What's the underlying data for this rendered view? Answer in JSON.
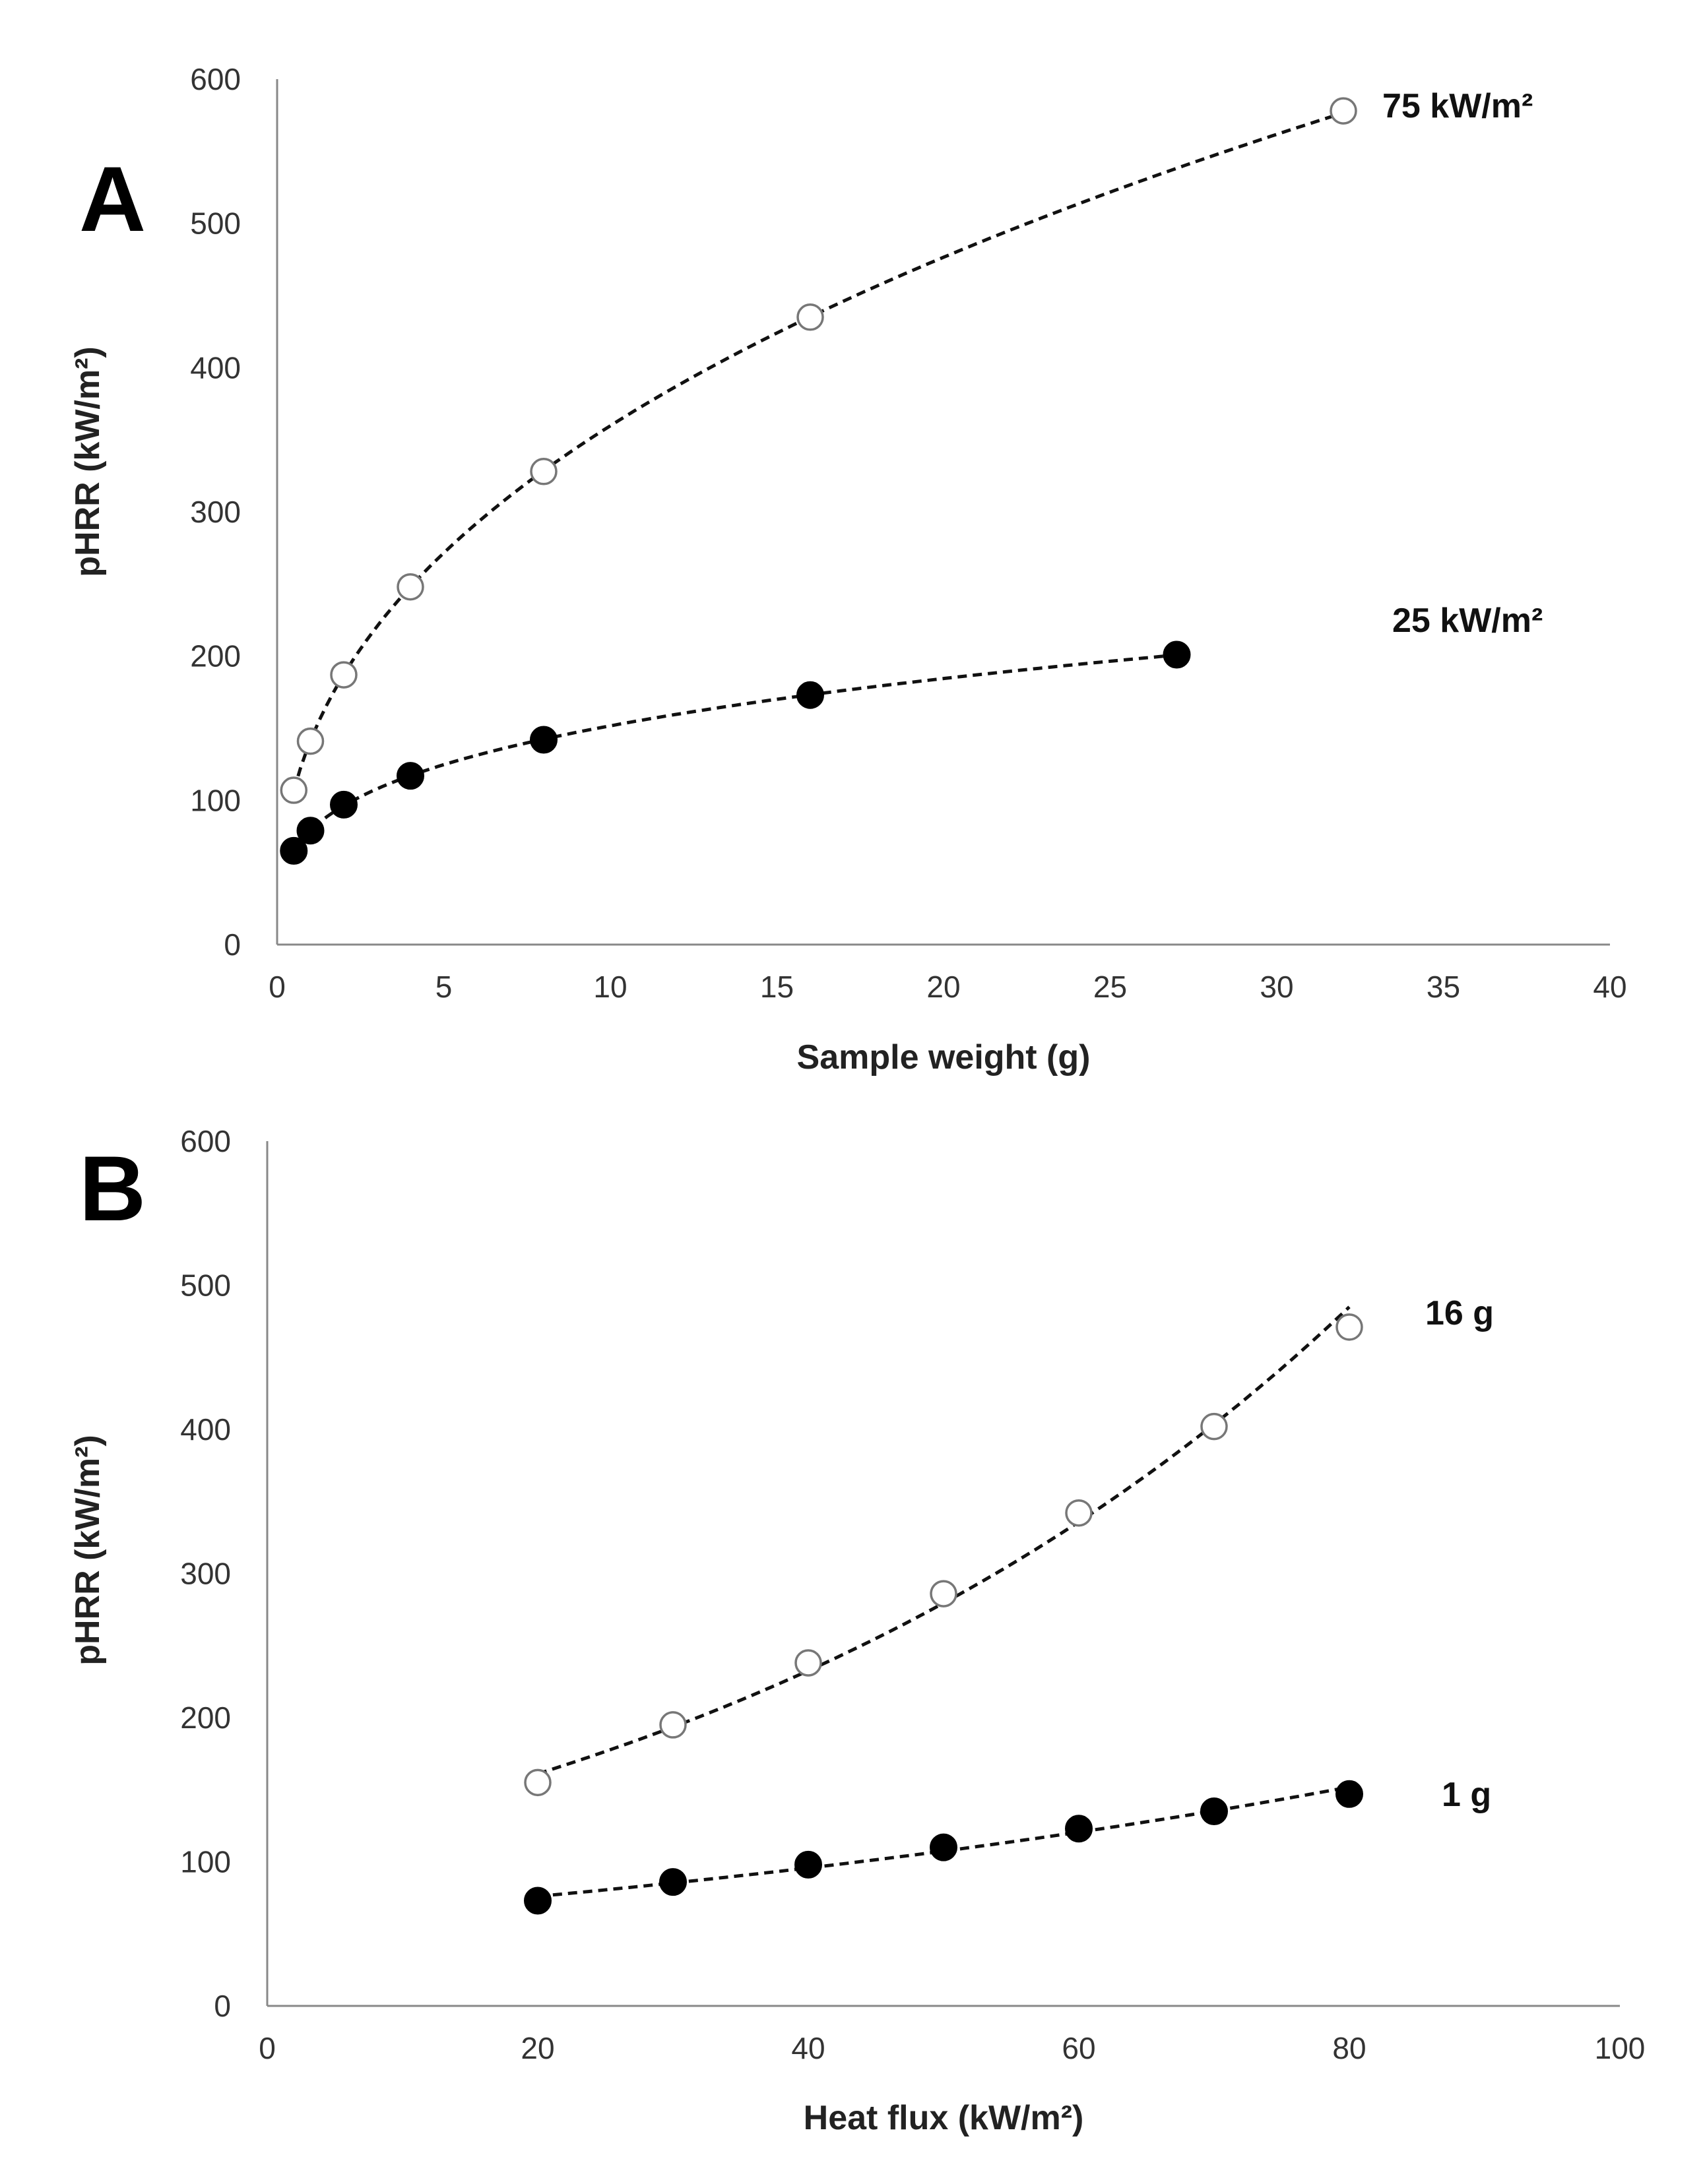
{
  "chart_data": [
    {
      "panel": "A",
      "type": "scatter",
      "xlabel": "Sample weight (g)",
      "ylabel": "pHRR (kW/m²)",
      "xlim": [
        0,
        40
      ],
      "ylim": [
        0,
        600
      ],
      "xticks": [
        0,
        5,
        10,
        15,
        20,
        25,
        30,
        35,
        40
      ],
      "yticks": [
        0,
        100,
        200,
        300,
        400,
        500,
        600
      ],
      "grid": false,
      "trendline": "power (dashed)",
      "series": [
        {
          "name": "75 kW/m²",
          "marker": "open",
          "x": [
            0.5,
            1,
            2,
            4,
            8,
            16,
            32
          ],
          "y": [
            107,
            141,
            187,
            248,
            328,
            435,
            578
          ]
        },
        {
          "name": "25 kW/m²",
          "marker": "filled",
          "x": [
            0.5,
            1,
            2,
            4,
            8,
            16,
            27
          ],
          "y": [
            65,
            79,
            97,
            117,
            142,
            173,
            201
          ]
        }
      ]
    },
    {
      "panel": "B",
      "type": "scatter",
      "xlabel": "Heat flux (kW/m²)",
      "ylabel": "pHRR (kW/m²)",
      "xlim": [
        0,
        100
      ],
      "ylim": [
        0,
        600
      ],
      "xticks": [
        0,
        20,
        40,
        60,
        80,
        100
      ],
      "yticks": [
        0,
        100,
        200,
        300,
        400,
        500,
        600
      ],
      "grid": false,
      "trendline": "exponential (dashed)",
      "series": [
        {
          "name": "16 g",
          "marker": "open",
          "x": [
            20,
            30,
            40,
            50,
            60,
            70,
            80
          ],
          "y": [
            155,
            195,
            238,
            286,
            342,
            402,
            471
          ]
        },
        {
          "name": "1 g",
          "marker": "filled",
          "x": [
            20,
            30,
            40,
            50,
            60,
            70,
            80
          ],
          "y": [
            73,
            86,
            98,
            110,
            123,
            135,
            147
          ]
        }
      ]
    }
  ]
}
